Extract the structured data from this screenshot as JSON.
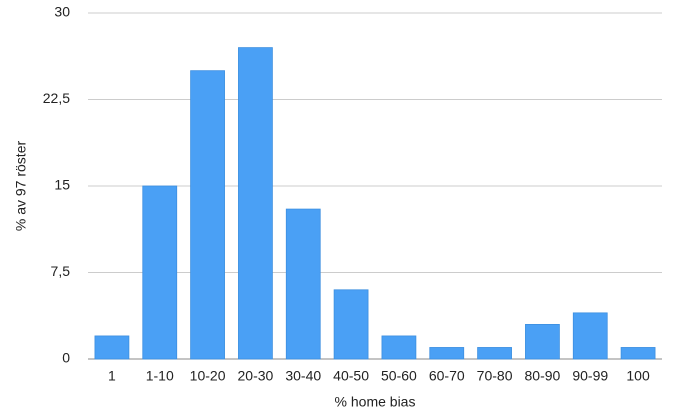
{
  "chart_data": {
    "type": "bar",
    "x_label": "% home bias",
    "y_label": "% av 97 röster",
    "categories": [
      "1",
      "1-10",
      "10-20",
      "20-30",
      "30-40",
      "40-50",
      "50-60",
      "60-70",
      "70-80",
      "80-90",
      "90-99",
      "100"
    ],
    "values": [
      2,
      15,
      25,
      27,
      13,
      6,
      2,
      1,
      1,
      3,
      4,
      1
    ],
    "color": "#4aa0f5",
    "ylim": [
      0,
      30
    ],
    "yticks": [
      0,
      {
        "value": 7.5,
        "label": "7,5"
      },
      15,
      {
        "value": 22.5,
        "label": "22,5"
      },
      30
    ],
    "grid": true
  }
}
